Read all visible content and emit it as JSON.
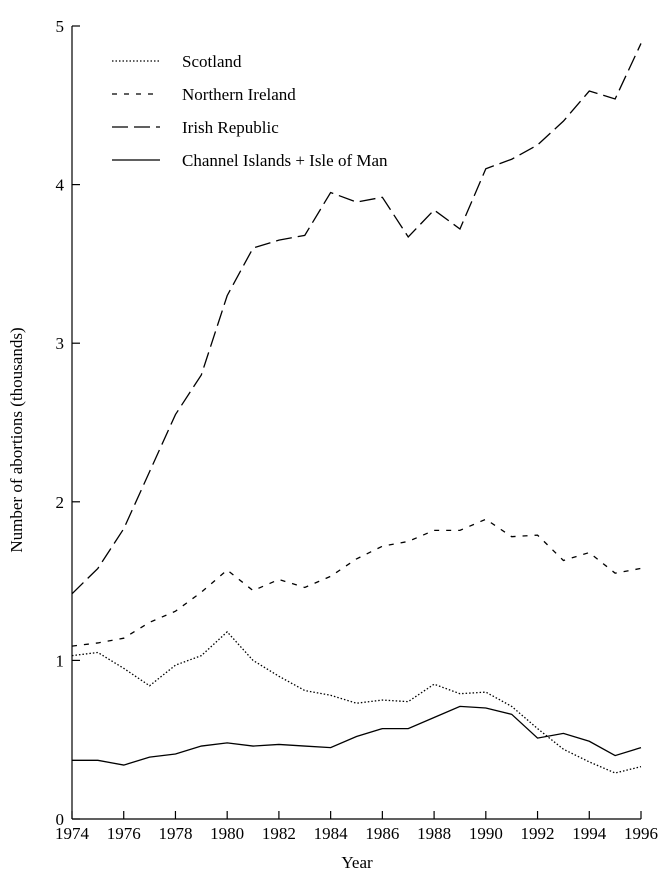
{
  "chart_data": {
    "type": "line",
    "x_label": "Year",
    "y_label": "Number of abortions (thousands)",
    "x": [
      1974,
      1975,
      1976,
      1977,
      1978,
      1979,
      1980,
      1981,
      1982,
      1983,
      1984,
      1985,
      1986,
      1987,
      1988,
      1989,
      1990,
      1991,
      1992,
      1993,
      1994,
      1995,
      1996
    ],
    "xlim": [
      1974,
      1996
    ],
    "xticks": [
      1974,
      1976,
      1978,
      1980,
      1982,
      1984,
      1986,
      1988,
      1990,
      1992,
      1994,
      1996
    ],
    "ylim": [
      0,
      5
    ],
    "yticks": [
      0,
      1,
      2,
      3,
      4,
      5
    ],
    "legend": "upper left",
    "series": [
      {
        "name": "Scotland",
        "color": "#000000",
        "dash": "dotted",
        "values": [
          1.03,
          1.05,
          0.95,
          0.84,
          0.97,
          1.03,
          1.18,
          1.0,
          0.9,
          0.81,
          0.78,
          0.73,
          0.75,
          0.74,
          0.85,
          0.79,
          0.8,
          0.71,
          0.57,
          0.44,
          0.36,
          0.29,
          0.33
        ]
      },
      {
        "name": "Northern Ireland",
        "color": "#000000",
        "dash": "short",
        "values": [
          1.09,
          1.11,
          1.14,
          1.24,
          1.31,
          1.43,
          1.57,
          1.44,
          1.51,
          1.46,
          1.53,
          1.64,
          1.72,
          1.75,
          1.82,
          1.82,
          1.89,
          1.78,
          1.79,
          1.63,
          1.68,
          1.55,
          1.58
        ]
      },
      {
        "name": "Irish Republic",
        "color": "#000000",
        "dash": "long",
        "values": [
          1.42,
          1.58,
          1.83,
          2.19,
          2.55,
          2.8,
          3.3,
          3.6,
          3.65,
          3.68,
          3.95,
          3.89,
          3.92,
          3.67,
          3.84,
          3.72,
          4.1,
          4.16,
          4.25,
          4.4,
          4.59,
          4.54,
          4.89
        ]
      },
      {
        "name": "Channel Islands + Isle of Man",
        "color": "#000000",
        "dash": "solid",
        "values": [
          0.37,
          0.37,
          0.34,
          0.39,
          0.41,
          0.46,
          0.48,
          0.46,
          0.47,
          0.46,
          0.45,
          0.52,
          0.57,
          0.57,
          0.64,
          0.71,
          0.7,
          0.66,
          0.51,
          0.54,
          0.49,
          0.4,
          0.45
        ]
      }
    ]
  }
}
